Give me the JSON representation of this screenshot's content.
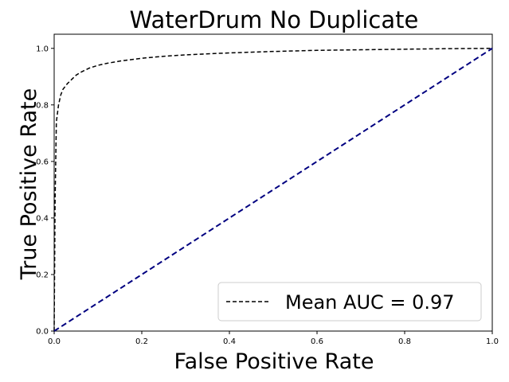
{
  "chart_data": {
    "type": "line",
    "title": "WaterDrum No Duplicate",
    "xlabel": "False Positive Rate",
    "ylabel": "True Positive Rate",
    "xlim": [
      0.0,
      1.0
    ],
    "ylim": [
      0.0,
      1.05
    ],
    "xticks": [
      "0.0",
      "0.2",
      "0.4",
      "0.6",
      "0.8",
      "1.0"
    ],
    "yticks": [
      "0.0",
      "0.2",
      "0.4",
      "0.6",
      "0.8",
      "1.0"
    ],
    "grid": false,
    "legend": {
      "placement": "lower-right",
      "entries": [
        "Mean AUC = 0.97"
      ]
    },
    "series": [
      {
        "name": "Mean AUC = 0.97",
        "style": "dashed",
        "color": "#000000",
        "x": [
          0.0,
          0.002,
          0.005,
          0.01,
          0.015,
          0.02,
          0.03,
          0.04,
          0.05,
          0.06,
          0.08,
          0.1,
          0.12,
          0.15,
          0.2,
          0.25,
          0.3,
          0.4,
          0.5,
          0.6,
          0.7,
          0.8,
          0.9,
          1.0
        ],
        "y": [
          0.0,
          0.45,
          0.74,
          0.8,
          0.835,
          0.855,
          0.875,
          0.89,
          0.905,
          0.915,
          0.93,
          0.94,
          0.947,
          0.955,
          0.965,
          0.972,
          0.977,
          0.984,
          0.989,
          0.993,
          0.995,
          0.997,
          0.999,
          1.0
        ]
      },
      {
        "style": "dashed",
        "color": "#000080",
        "x": [
          0.0,
          1.0
        ],
        "y": [
          0.0,
          1.0
        ]
      }
    ]
  }
}
